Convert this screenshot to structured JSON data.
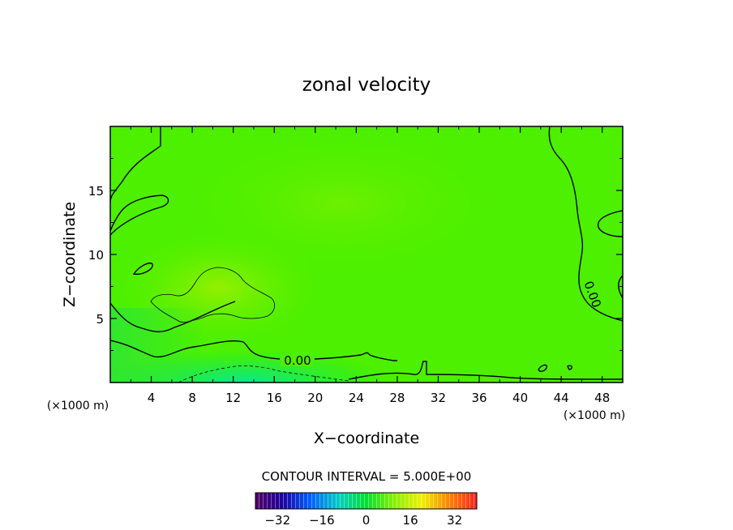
{
  "chart_data": {
    "type": "heatmap",
    "title": "zonal velocity",
    "xlabel": "X−coordinate",
    "ylabel": "Z−coordinate",
    "x_unit_label": "(×1000 m)",
    "x_unit_label_right": "(×1000 m)",
    "xlim": [
      0,
      50
    ],
    "ylim": [
      0,
      20
    ],
    "x_ticks": [
      "4",
      "8",
      "12",
      "16",
      "20",
      "24",
      "28",
      "32",
      "36",
      "40",
      "44",
      "48"
    ],
    "y_ticks": [
      "5",
      "10",
      "15"
    ],
    "contour_interval_text": "CONTOUR INTERVAL = 5.000E+00",
    "contour_label": "0.00",
    "contour_label_2": "0.00",
    "colorbar": {
      "range": [
        -40,
        40
      ],
      "ticks": [
        "−32",
        "−16",
        "0",
        "16",
        "32"
      ],
      "colormap": "rainbow"
    },
    "field_description_values": {
      "background": 2,
      "max_positive_region": 10,
      "min_negative_region": -6
    }
  }
}
